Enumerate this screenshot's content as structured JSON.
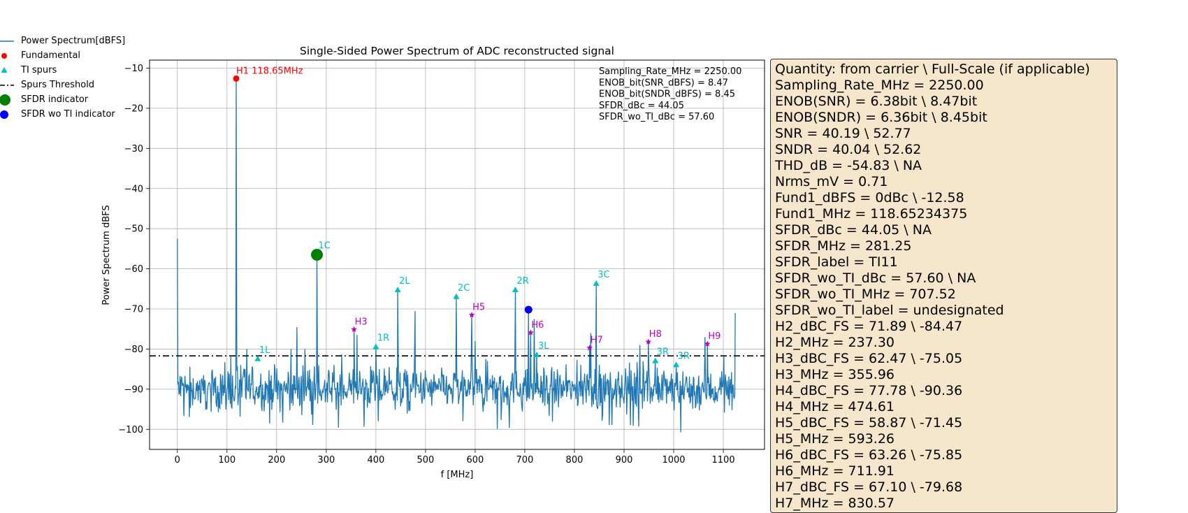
{
  "chart_data": {
    "type": "line",
    "title": "Single-Sided Power Spectrum of ADC reconstructed signal",
    "xlabel": "f [MHz]",
    "ylabel": "Power Spectrum dBFS",
    "xlim": [
      -56,
      1183
    ],
    "ylim": [
      -105,
      -8
    ],
    "xticks": [
      0,
      100,
      200,
      300,
      400,
      500,
      600,
      700,
      800,
      900,
      1000,
      1100
    ],
    "yticks": [
      -10,
      -20,
      -30,
      -40,
      -50,
      -60,
      -70,
      -80,
      -90,
      -100
    ],
    "grid": true,
    "legend_position": "outside-top-left",
    "noise_floor": {
      "x_range": [
        0,
        1125
      ],
      "mean": -90,
      "spread": 5,
      "min": -101,
      "max": -81
    },
    "spectrum_peaks": [
      {
        "x": 0,
        "y": -52.5
      },
      {
        "x": 118.65,
        "y": -12.6
      },
      {
        "x": 140,
        "y": -80
      },
      {
        "x": 229,
        "y": -80
      },
      {
        "x": 241,
        "y": -74.5
      },
      {
        "x": 257,
        "y": -80
      },
      {
        "x": 281.25,
        "y": -56.5
      },
      {
        "x": 355.96,
        "y": -75.1
      },
      {
        "x": 362,
        "y": -76.5
      },
      {
        "x": 400,
        "y": -79.5
      },
      {
        "x": 444,
        "y": -65.3
      },
      {
        "x": 479,
        "y": -70.5
      },
      {
        "x": 562,
        "y": -67
      },
      {
        "x": 593.26,
        "y": -71.5
      },
      {
        "x": 600,
        "y": -78
      },
      {
        "x": 681,
        "y": -65.3
      },
      {
        "x": 707.52,
        "y": -70.2
      },
      {
        "x": 711.91,
        "y": -75.9
      },
      {
        "x": 719,
        "y": -72.5
      },
      {
        "x": 724,
        "y": -81.5
      },
      {
        "x": 830.57,
        "y": -79.7
      },
      {
        "x": 833,
        "y": -76
      },
      {
        "x": 844,
        "y": -63.7
      },
      {
        "x": 932,
        "y": -79
      },
      {
        "x": 949,
        "y": -78.2
      },
      {
        "x": 963,
        "y": -83
      },
      {
        "x": 1005,
        "y": -84
      },
      {
        "x": 1063,
        "y": -77
      },
      {
        "x": 1068,
        "y": -78.7
      },
      {
        "x": 1124,
        "y": -71
      }
    ],
    "series": [
      {
        "name": "Power Spectrum[dBFS]",
        "color": "#1f77b4",
        "marker": "line"
      },
      {
        "name": "Fundamental",
        "color": "#ff0000",
        "marker": "dot",
        "points": [
          {
            "x": 118.65,
            "y": -12.6,
            "label": "H1 118.65MHz"
          }
        ]
      },
      {
        "name": "TI spurs",
        "color": "#00bfbf",
        "marker": "triangle",
        "points": [
          {
            "x": 162,
            "y": -82.5,
            "label": "1L"
          },
          {
            "x": 281.25,
            "y": -56.5,
            "label": "1C"
          },
          {
            "x": 400,
            "y": -79.5,
            "label": "1R"
          },
          {
            "x": 444,
            "y": -65.3,
            "label": "2L"
          },
          {
            "x": 562,
            "y": -67,
            "label": "2C"
          },
          {
            "x": 681,
            "y": -65.3,
            "label": "2R"
          },
          {
            "x": 724,
            "y": -81.5,
            "label": "3L"
          },
          {
            "x": 844,
            "y": -63.7,
            "label": "3C"
          },
          {
            "x": 963,
            "y": -83,
            "label": "3R"
          },
          {
            "x": 1005,
            "y": -84,
            "label": "3R"
          }
        ]
      },
      {
        "name": "Spurs Threshold",
        "color": "#000000",
        "marker": "dashdot",
        "y": -81.7
      },
      {
        "name": "SFDR indicator",
        "color": "#008000",
        "marker": "bigdot",
        "points": [
          {
            "x": 281.25,
            "y": -56.5
          }
        ]
      },
      {
        "name": "SFDR wo TI indicator",
        "color": "#0000ff",
        "marker": "dot",
        "points": [
          {
            "x": 707.52,
            "y": -70.2
          }
        ]
      }
    ],
    "harmonics": {
      "color": "#bf00bf",
      "points": [
        {
          "x": 355.96,
          "y": -75.1,
          "label": "H3"
        },
        {
          "x": 593.26,
          "y": -71.5,
          "label": "H5"
        },
        {
          "x": 711.91,
          "y": -75.9,
          "label": "H6"
        },
        {
          "x": 830.57,
          "y": -79.7,
          "label": "H7"
        },
        {
          "x": 949,
          "y": -78.2,
          "label": "H8"
        },
        {
          "x": 1068,
          "y": -78.7,
          "label": "H9"
        }
      ]
    },
    "annotation_lines": [
      "Sampling_Rate_MHz = 2250.00",
      "ENOB_bit(SNR_dBFS) = 8.47",
      "ENOB_bit(SNDR_dBFS) = 8.45",
      "SFDR_dBc = 44.05",
      "SFDR_wo_TI_dBc = 57.60"
    ]
  },
  "stats_box": {
    "lines": [
      "Quantity:     from carrier \\ Full-Scale (if applicable)",
      "Sampling_Rate_MHz = 2250.00",
      "ENOB(SNR) = 6.38bit \\ 8.47bit",
      "ENOB(SNDR) = 6.36bit \\ 8.45bit",
      "SNR = 40.19 \\ 52.77",
      "SNDR = 40.04 \\ 52.62",
      "THD_dB = -54.83 \\ NA",
      "Nrms_mV = 0.71",
      "Fund1_dBFS = 0dBc \\ -12.58",
      "Fund1_MHz = 118.65234375",
      "SFDR_dBc = 44.05 \\ NA",
      "SFDR_MHz = 281.25",
      "SFDR_label = TI11",
      "SFDR_wo_TI_dBc = 57.60 \\ NA",
      "SFDR_wo_TI_MHz = 707.52",
      "SFDR_wo_TI_label = undesignated",
      "H2_dBC_FS = 71.89 \\ -84.47",
      "H2_MHz = 237.30",
      "H3_dBC_FS = 62.47 \\ -75.05",
      "H3_MHz = 355.96",
      "H4_dBC_FS = 77.78 \\ -90.36",
      "H4_MHz = 474.61",
      "H5_dBC_FS = 58.87 \\ -71.45",
      "H5_MHz = 593.26",
      "H6_dBC_FS = 63.26 \\ -75.85",
      "H6_MHz = 711.91",
      "H7_dBC_FS = 67.10 \\ -79.68",
      "H7_MHz = 830.57"
    ]
  }
}
